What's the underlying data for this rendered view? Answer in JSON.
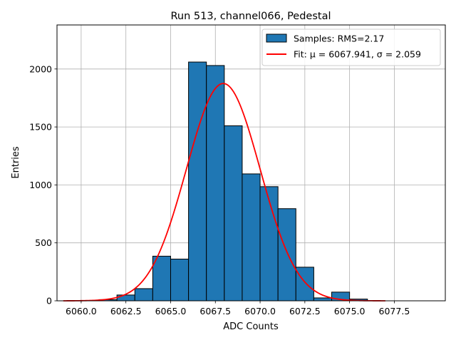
{
  "chart_data": {
    "type": "bar",
    "title": "Run 513, channel066, Pedestal",
    "xlabel": "ADC Counts",
    "ylabel": "Entries",
    "xlim": [
      6058.65,
      6080.35
    ],
    "ylim": [
      0,
      2380
    ],
    "xticks": [
      {
        "value": 6060.0,
        "label": "6060.0"
      },
      {
        "value": 6062.5,
        "label": "6062.5"
      },
      {
        "value": 6065.0,
        "label": "6065.0"
      },
      {
        "value": 6067.5,
        "label": "6067.5"
      },
      {
        "value": 6070.0,
        "label": "6070.0"
      },
      {
        "value": 6072.5,
        "label": "6072.5"
      },
      {
        "value": 6075.0,
        "label": "6075.0"
      },
      {
        "value": 6077.5,
        "label": "6077.5"
      }
    ],
    "yticks": [
      {
        "value": 0,
        "label": "0"
      },
      {
        "value": 500,
        "label": "500"
      },
      {
        "value": 1000,
        "label": "1000"
      },
      {
        "value": 1500,
        "label": "1500"
      },
      {
        "value": 2000,
        "label": "2000"
      }
    ],
    "grid": true,
    "legend_position": "top-right",
    "histogram": {
      "name": "Samples: RMS=2.17",
      "color": "#1f77b4",
      "edgecolor": "#000000",
      "bins": [
        {
          "x0": 6060.0,
          "x1": 6061.0,
          "value": 0
        },
        {
          "x0": 6061.0,
          "x1": 6062.0,
          "value": 10
        },
        {
          "x0": 6062.0,
          "x1": 6063.0,
          "value": 50
        },
        {
          "x0": 6063.0,
          "x1": 6064.0,
          "value": 105
        },
        {
          "x0": 6064.0,
          "x1": 6065.0,
          "value": 385
        },
        {
          "x0": 6065.0,
          "x1": 6066.0,
          "value": 360
        },
        {
          "x0": 6066.0,
          "x1": 6067.0,
          "value": 2060
        },
        {
          "x0": 6067.0,
          "x1": 6068.0,
          "value": 2030
        },
        {
          "x0": 6068.0,
          "x1": 6069.0,
          "value": 1510
        },
        {
          "x0": 6069.0,
          "x1": 6070.0,
          "value": 1095
        },
        {
          "x0": 6070.0,
          "x1": 6071.0,
          "value": 985
        },
        {
          "x0": 6071.0,
          "x1": 6072.0,
          "value": 795
        },
        {
          "x0": 6072.0,
          "x1": 6073.0,
          "value": 290
        },
        {
          "x0": 6073.0,
          "x1": 6074.0,
          "value": 25
        },
        {
          "x0": 6074.0,
          "x1": 6075.0,
          "value": 75
        },
        {
          "x0": 6075.0,
          "x1": 6076.0,
          "value": 15
        }
      ]
    },
    "fit": {
      "name": "Fit: μ = 6067.941, σ = 2.059",
      "color": "#ff0000",
      "mu": 6067.941,
      "sigma": 2.059,
      "amplitude": 1875,
      "x_range": [
        6059.0,
        6077.0
      ]
    }
  }
}
